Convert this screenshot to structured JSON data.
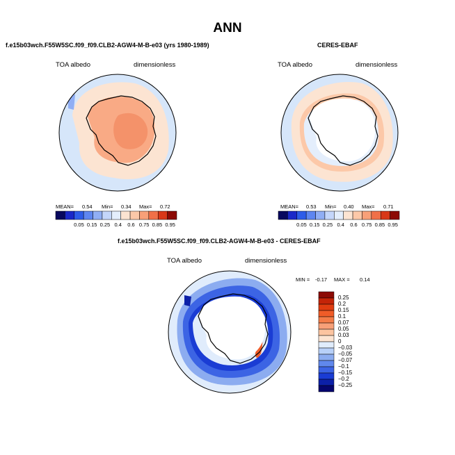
{
  "title": "ANN",
  "panels": {
    "model": {
      "title": "f.e15b03wch.F55W5SC.f09_f09.CLB2-AGW4-M-B-e03 (yrs 1980-1989)",
      "variable": "TOA albedo",
      "units": "dimensionless",
      "mean_label": "MEAN=",
      "mean": "0.54",
      "min_label": "Min=",
      "min": "0.34",
      "max_label": "Max=",
      "max": "0.72"
    },
    "obs": {
      "title": "CERES-EBAF",
      "variable": "TOA albedo",
      "units": "dimensionless",
      "mean_label": "MEAN=",
      "mean": "0.53",
      "min_label": "Min=",
      "min": "0.40",
      "max_label": "Max=",
      "max": "0.71"
    },
    "diff": {
      "title": "f.e15b03wch.F55W5SC.f09_f09.CLB2-AGW4-M-B-e03 - CERES-EBAF",
      "variable": "TOA albedo",
      "units": "dimensionless",
      "min_label": "MIN =",
      "min": "-0.17",
      "max_label": "MAX =",
      "max": "0.14"
    }
  },
  "colorbar_abs": {
    "labels": [
      "0.05",
      "0.15",
      "0.25",
      "0.4",
      "0.6",
      "0.75",
      "0.85",
      "0.95"
    ],
    "colors": [
      "#08085e",
      "#1a28c8",
      "#2e5ce8",
      "#5e86f0",
      "#90aef4",
      "#c4d6fa",
      "#e4eefc",
      "#fce4d2",
      "#fcc8a8",
      "#f8a078",
      "#f07048",
      "#d83818",
      "#8c0a04"
    ]
  },
  "colorbar_diff": {
    "labels": [
      "0.25",
      "0.2",
      "0.15",
      "0.1",
      "0.07",
      "0.05",
      "0.03",
      "0",
      "−0.03",
      "−0.05",
      "−0.07",
      "−0.1",
      "−0.15",
      "−0.2",
      "−0.25"
    ],
    "colors": [
      "#8c0a04",
      "#c42408",
      "#e03c10",
      "#f05c28",
      "#f47c48",
      "#f8a078",
      "#fcc4a0",
      "#fce4d2",
      "#e0ecfc",
      "#b8d0f8",
      "#8cacf0",
      "#6088ec",
      "#3c64e4",
      "#1a3cd4",
      "#0c20a8",
      "#06066e"
    ]
  }
}
